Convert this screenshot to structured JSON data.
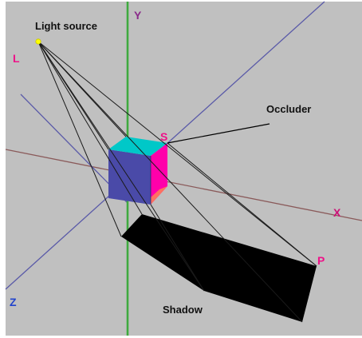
{
  "labels": {
    "light_source": "Light source",
    "occluder": "Occluder",
    "shadow": "Shadow",
    "point_l": "L",
    "point_s": "S",
    "point_p": "P",
    "axis_x": "X",
    "axis_y": "Y",
    "axis_z": "Z"
  },
  "colors": {
    "background": "#c0c0c0",
    "axis_x": "#8a5a5a",
    "axis_y": "#3faa3f",
    "axis_z": "#5a5aa8",
    "axis_diag": "#5a5aa8",
    "label_x": "#cc1177",
    "label_y": "#8a2a8a",
    "label_z": "#2244cc",
    "label_l": "#ee1188",
    "label_s": "#ee1188",
    "label_p": "#ee1188",
    "light": "#ffff00",
    "cube_top": "#00c8c8",
    "cube_front": "#4a4aa8",
    "cube_right": "#ff00aa",
    "cube_bottom_right": "#ff7060",
    "shadow": "#000000",
    "rays": "#1a1a1a"
  }
}
